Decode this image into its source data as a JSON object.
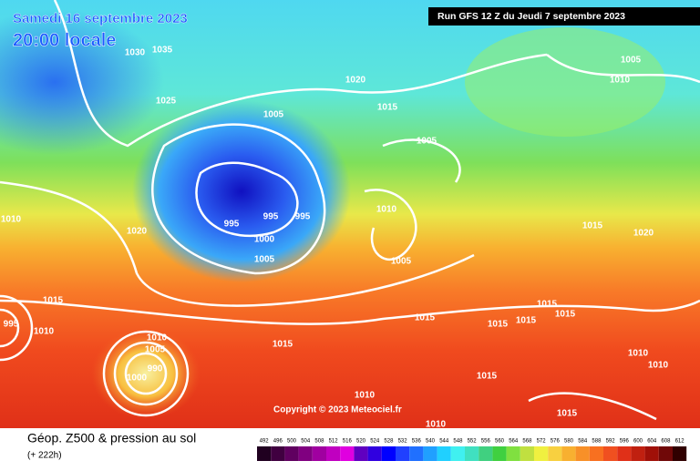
{
  "header": {
    "date": "Samedi 16 septembre 2023",
    "time": "20:00 locale",
    "run": "Run GFS 12 Z du Jeudi 7 septembre 2023"
  },
  "copyright": "Copyright © 2023 Meteociel.fr",
  "footer": {
    "title": "Géop. Z500 & pression au sol",
    "lead": "(+ 222h)"
  },
  "isobar_labels": [
    1030,
    1035,
    1025,
    1020,
    1015,
    1005,
    1005,
    1005,
    1010,
    1010,
    995,
    995,
    995,
    1000,
    1005,
    1020,
    1010,
    1015,
    1020,
    1005,
    1015,
    1015,
    1015,
    1015,
    1015,
    1015,
    1015,
    1010,
    1005,
    1000,
    990,
    1010,
    1010,
    1015,
    1015,
    1010,
    1010,
    1010,
    995
  ],
  "scale": [
    492,
    496,
    500,
    504,
    508,
    512,
    516,
    520,
    524,
    528,
    532,
    536,
    540,
    544,
    548,
    552,
    556,
    560,
    564,
    568,
    572,
    576,
    580,
    584,
    588,
    592,
    596,
    600,
    604,
    608,
    612
  ]
}
